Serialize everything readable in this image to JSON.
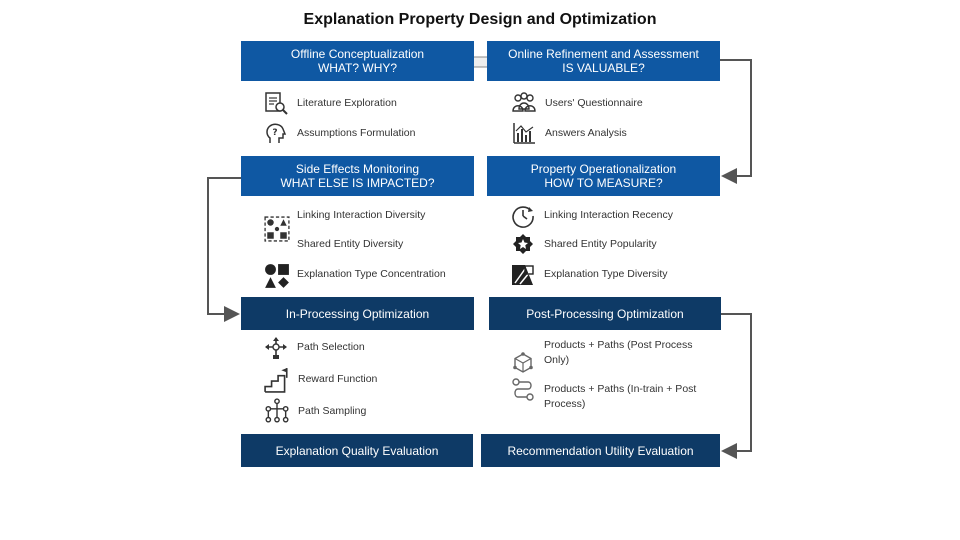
{
  "title": "Explanation Property Design and Optimization",
  "boxes": {
    "offline": {
      "line1": "Offline Conceptualization",
      "line2": "WHAT? WHY?"
    },
    "online": {
      "line1": "Online Refinement and Assessment",
      "line2": "IS VALUABLE?"
    },
    "side_effects": {
      "line1": "Side Effects Monitoring",
      "line2": "WHAT ELSE IS IMPACTED?"
    },
    "operationalization": {
      "line1": "Property Operationalization",
      "line2": "HOW TO MEASURE?"
    },
    "in_processing": {
      "line1": "In-Processing Optimization"
    },
    "post_processing": {
      "line1": "Post-Processing Optimization"
    },
    "explanation_quality": {
      "line1": "Explanation Quality Evaluation"
    },
    "recommendation_utility": {
      "line1": "Recommendation Utility Evaluation"
    }
  },
  "items": {
    "literature": "Literature Exploration",
    "assumptions": "Assumptions Formulation",
    "questionnaire": "Users' Questionnaire",
    "answers": "Answers Analysis",
    "linking_diversity": "Linking Interaction Diversity",
    "shared_diversity": "Shared Entity Diversity",
    "type_concentration": "Explanation Type Concentration",
    "linking_recency": "Linking Interaction Recency",
    "shared_popularity": "Shared Entity Popularity",
    "type_diversity": "Explanation Type Diversity",
    "path_selection": "Path Selection",
    "reward_function": "Reward Function",
    "path_sampling": "Path Sampling",
    "products_post": "Products + Paths (Post Process Only)",
    "products_intrain": "Products + Paths (In-train + Post Process)"
  },
  "colors": {
    "box_light": "#0f58a3",
    "box_dark": "#0e3a66",
    "arrow": "#555555",
    "icon": "#333333"
  },
  "icons": {
    "literature": "document-search-icon",
    "assumptions": "head-question-icon",
    "questionnaire": "users-group-icon",
    "answers": "bar-chart-icon",
    "linking_diversity": "diversity-shapes-icon",
    "type_concentration": "shapes-icon",
    "linking_recency": "clock-icon",
    "shared_popularity": "star-badge-icon",
    "type_diversity": "shapes-diversity-icon",
    "path_selection": "route-icon",
    "reward_function": "stairs-flag-icon",
    "path_sampling": "network-icon",
    "products_post": "cube-network-icon",
    "products_intrain": "path-nodes-icon"
  }
}
